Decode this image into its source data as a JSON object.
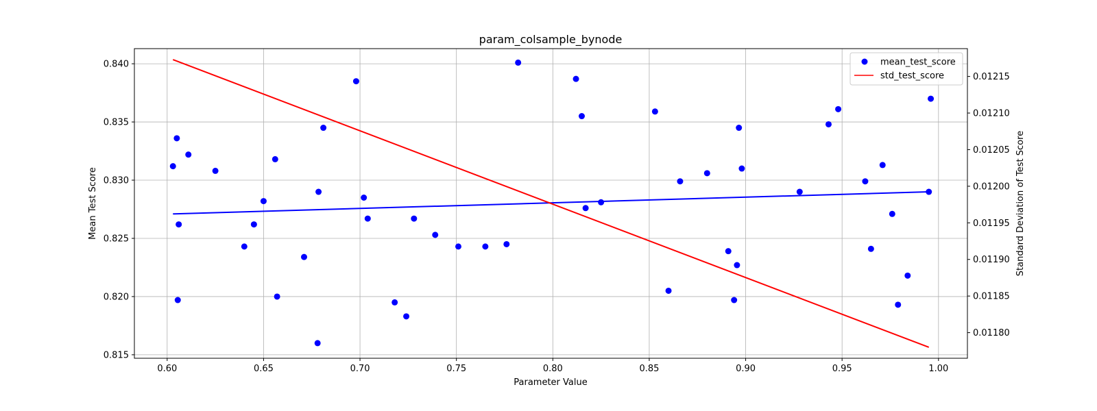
{
  "chart_data": {
    "type": "scatter",
    "title": "param_colsample_bynode",
    "xlabel": "Parameter Value",
    "ylabel": "Mean Test Score",
    "y2label": "Standard Deviation of Test Score",
    "xlim": [
      0.583,
      1.015
    ],
    "ylim": [
      0.8147,
      0.8413
    ],
    "y2lim": [
      0.011765,
      0.012188
    ],
    "xticks": [
      "0.60",
      "0.65",
      "0.70",
      "0.75",
      "0.80",
      "0.85",
      "0.90",
      "0.95",
      "1.00"
    ],
    "yticks": [
      "0.815",
      "0.820",
      "0.825",
      "0.830",
      "0.835",
      "0.840"
    ],
    "y2ticks": [
      "0.01180",
      "0.01185",
      "0.01190",
      "0.01195",
      "0.01200",
      "0.01205",
      "0.01210",
      "0.01215"
    ],
    "grid": true,
    "legend_position": "top-right",
    "legend": [
      "mean_test_score",
      "std_test_score"
    ],
    "colors": {
      "scatter": "#0000ff",
      "trend": "#0000ff",
      "std": "#ff0000"
    },
    "series": [
      {
        "name": "mean_test_score",
        "kind": "scatter",
        "axis": "left",
        "points": [
          [
            0.603,
            0.8312
          ],
          [
            0.605,
            0.8336
          ],
          [
            0.6055,
            0.8197
          ],
          [
            0.606,
            0.8262
          ],
          [
            0.611,
            0.8322
          ],
          [
            0.625,
            0.8308
          ],
          [
            0.64,
            0.8243
          ],
          [
            0.645,
            0.8262
          ],
          [
            0.65,
            0.8282
          ],
          [
            0.656,
            0.8318
          ],
          [
            0.657,
            0.82
          ],
          [
            0.671,
            0.8234
          ],
          [
            0.678,
            0.816
          ],
          [
            0.6785,
            0.829
          ],
          [
            0.681,
            0.8345
          ],
          [
            0.698,
            0.8385
          ],
          [
            0.702,
            0.8285
          ],
          [
            0.704,
            0.8267
          ],
          [
            0.718,
            0.8195
          ],
          [
            0.724,
            0.8183
          ],
          [
            0.728,
            0.8267
          ],
          [
            0.739,
            0.8253
          ],
          [
            0.751,
            0.8243
          ],
          [
            0.765,
            0.8243
          ],
          [
            0.776,
            0.8245
          ],
          [
            0.782,
            0.8401
          ],
          [
            0.812,
            0.8387
          ],
          [
            0.815,
            0.8355
          ],
          [
            0.817,
            0.8276
          ],
          [
            0.825,
            0.8281
          ],
          [
            0.853,
            0.8359
          ],
          [
            0.86,
            0.8205
          ],
          [
            0.866,
            0.8299
          ],
          [
            0.88,
            0.8306
          ],
          [
            0.891,
            0.8239
          ],
          [
            0.894,
            0.8197
          ],
          [
            0.8955,
            0.8227
          ],
          [
            0.8965,
            0.8345
          ],
          [
            0.898,
            0.831
          ],
          [
            0.928,
            0.829
          ],
          [
            0.943,
            0.8348
          ],
          [
            0.948,
            0.8361
          ],
          [
            0.962,
            0.8299
          ],
          [
            0.965,
            0.8241
          ],
          [
            0.971,
            0.8313
          ],
          [
            0.976,
            0.8271
          ],
          [
            0.979,
            0.8193
          ],
          [
            0.984,
            0.8218
          ],
          [
            0.995,
            0.829
          ],
          [
            0.996,
            0.837
          ]
        ]
      },
      {
        "name": "mean_test_score trend",
        "kind": "line",
        "axis": "left",
        "points": [
          [
            0.603,
            0.8271
          ],
          [
            0.995,
            0.829
          ]
        ]
      },
      {
        "name": "std_test_score",
        "kind": "line",
        "axis": "right",
        "points": [
          [
            0.603,
            0.012173
          ],
          [
            0.995,
            0.01178
          ]
        ]
      }
    ]
  }
}
